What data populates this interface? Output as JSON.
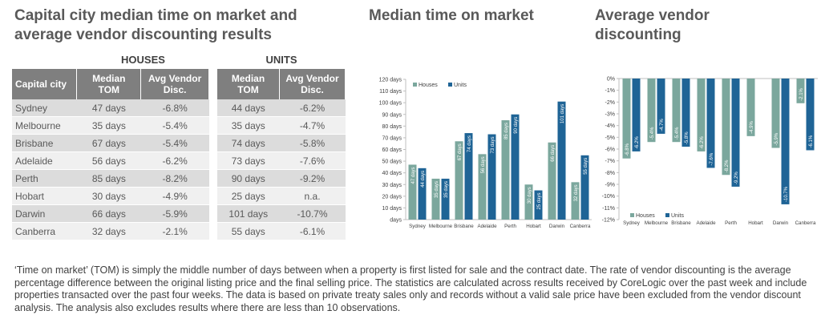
{
  "titles": {
    "main_line1": "Capital city median time on market and",
    "main_line2": "average vendor discounting results",
    "tom": "Median time on market",
    "vd_line1": "Average vendor",
    "vd_line2": "discounting"
  },
  "table": {
    "group_houses": "HOUSES",
    "group_units": "UNITS",
    "col_city": "Capital city",
    "col_tom_1": "Median",
    "col_tom_2": "TOM",
    "col_disc_1": "Avg Vendor",
    "col_disc_2": "Disc.",
    "rows": [
      {
        "city": "Sydney",
        "h_tom": "47 days",
        "h_disc": "-6.8%",
        "u_tom": "44 days",
        "u_disc": "-6.2%"
      },
      {
        "city": "Melbourne",
        "h_tom": "35 days",
        "h_disc": "-5.4%",
        "u_tom": "35 days",
        "u_disc": "-4.7%"
      },
      {
        "city": "Brisbane",
        "h_tom": "67 days",
        "h_disc": "-5.4%",
        "u_tom": "74 days",
        "u_disc": "-5.8%"
      },
      {
        "city": "Adelaide",
        "h_tom": "56 days",
        "h_disc": "-6.2%",
        "u_tom": "73 days",
        "u_disc": "-7.6%"
      },
      {
        "city": "Perth",
        "h_tom": "85 days",
        "h_disc": "-8.2%",
        "u_tom": "90 days",
        "u_disc": "-9.2%"
      },
      {
        "city": "Hobart",
        "h_tom": "30 days",
        "h_disc": "-4.9%",
        "u_tom": "25 days",
        "u_disc": "n.a."
      },
      {
        "city": "Darwin",
        "h_tom": "66 days",
        "h_disc": "-5.9%",
        "u_tom": "101 days",
        "u_disc": "-10.7%"
      },
      {
        "city": "Canberra",
        "h_tom": "32 days",
        "h_disc": "-2.1%",
        "u_tom": "55 days",
        "u_disc": "-6.1%"
      }
    ]
  },
  "colors": {
    "houses": "#7ba79d",
    "units": "#1f6496",
    "header_bg": "#7f7f7f"
  },
  "chart_data": [
    {
      "type": "bar",
      "title": "Median time on market",
      "categories": [
        "Sydney",
        "Melbourne",
        "Brisbane",
        "Adelaide",
        "Perth",
        "Hobart",
        "Darwin",
        "Canberra"
      ],
      "series": [
        {
          "name": "Houses",
          "values": [
            47,
            35,
            67,
            56,
            85,
            30,
            66,
            32
          ],
          "labels": [
            "47 days",
            "35 days",
            "67 days",
            "56 days",
            "85 days",
            "30 days",
            "66 days",
            "32 days"
          ]
        },
        {
          "name": "Units",
          "values": [
            44,
            35,
            74,
            73,
            90,
            25,
            101,
            55
          ],
          "labels": [
            "44 days",
            "35 days",
            "74 days",
            "73 days",
            "90 days",
            "25 days",
            "101 days",
            "55 days"
          ]
        }
      ],
      "ylim": [
        0,
        120
      ],
      "yticks": [
        0,
        10,
        20,
        30,
        40,
        50,
        60,
        70,
        80,
        90,
        100,
        110,
        120
      ],
      "ytick_labels": [
        "days",
        "10 days",
        "20 days",
        "30 days",
        "40 days",
        "50 days",
        "60 days",
        "70 days",
        "80 days",
        "90 days",
        "100 days",
        "110 days",
        "120 days"
      ],
      "grid": false,
      "legend": "top-left"
    },
    {
      "type": "bar",
      "title": "Average vendor discounting",
      "categories": [
        "Sydney",
        "Melbourne",
        "Brisbane",
        "Adelaide",
        "Perth",
        "Hobart",
        "Darwin",
        "Canberra"
      ],
      "series": [
        {
          "name": "Houses",
          "values": [
            -6.8,
            -5.4,
            -5.4,
            -6.2,
            -8.2,
            -4.9,
            -5.9,
            -2.1
          ],
          "labels": [
            "-6.8%",
            "-5.4%",
            "-5.4%",
            "-6.2%",
            "-8.2%",
            "-4.9%",
            "-5.9%",
            "-2.1%"
          ]
        },
        {
          "name": "Units",
          "values": [
            -6.2,
            -4.7,
            -5.8,
            -7.6,
            -9.2,
            null,
            -10.7,
            -6.1
          ],
          "labels": [
            "-6.2%",
            "-4.7%",
            "-5.8%",
            "-7.6%",
            "-9.2%",
            "",
            "-10.7%",
            "-6.1%"
          ]
        }
      ],
      "ylim": [
        -12,
        0
      ],
      "yticks": [
        0,
        -1,
        -2,
        -3,
        -4,
        -5,
        -6,
        -7,
        -8,
        -9,
        -10,
        -11,
        -12
      ],
      "ytick_labels": [
        "0%",
        "-1%",
        "-2%",
        "-3%",
        "-4%",
        "-5%",
        "-6%",
        "-7%",
        "-8%",
        "-9%",
        "-10%",
        "-11%",
        "-12%"
      ],
      "grid": false,
      "legend": "bottom-left"
    }
  ],
  "footnote": "‘Time on market’ (TOM) is simply the middle number of days between when a property is first listed for sale and the contract date.  The rate of vendor discounting is the average percentage difference between the original listing price and the final selling price.  The statistics are calculated across results received by CoreLogic over the past week and include properties transacted over the past four weeks. The data is based on private treaty sales only and records without a valid sale price have been excluded from the vendor discount analysis. The analysis also excludes results where there are less than 10 observations."
}
